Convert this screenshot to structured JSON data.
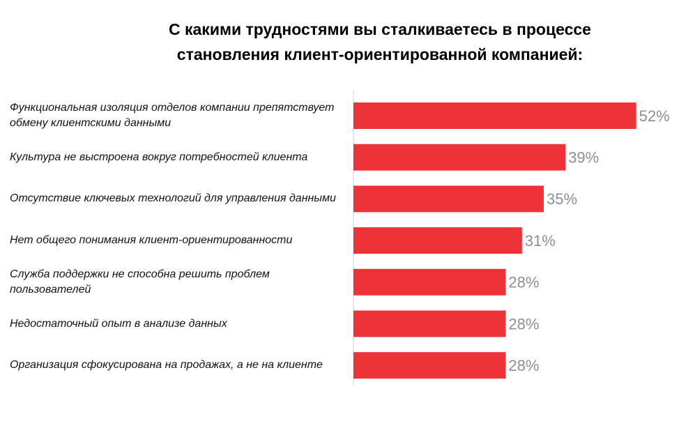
{
  "chart_data": {
    "type": "barh",
    "title": "С какими трудностями вы сталкиваетесь в процессе становления клиент-ориентированной компанией:",
    "categories": [
      "Функциональная изоляция отделов компании препятствует  обмену клиентскими данными",
      "Культура не выстроена вокруг потребностей клиента",
      "Отсутствие ключевых технологий для управления данными",
      "Нет общего понимания клиент-ориентированности",
      "Служба поддержки не способна решить проблем пользователей",
      "Недостаточный опыт в анализе данных",
      "Организация сфокусирована на продажах, а не на клиенте"
    ],
    "values": [
      52,
      39,
      35,
      31,
      28,
      28,
      28
    ],
    "value_labels": [
      "52%",
      "39%",
      "35%",
      "31%",
      "28%",
      "28%",
      "28%"
    ],
    "color": "#ee3338",
    "xlim": [
      0,
      60
    ]
  }
}
